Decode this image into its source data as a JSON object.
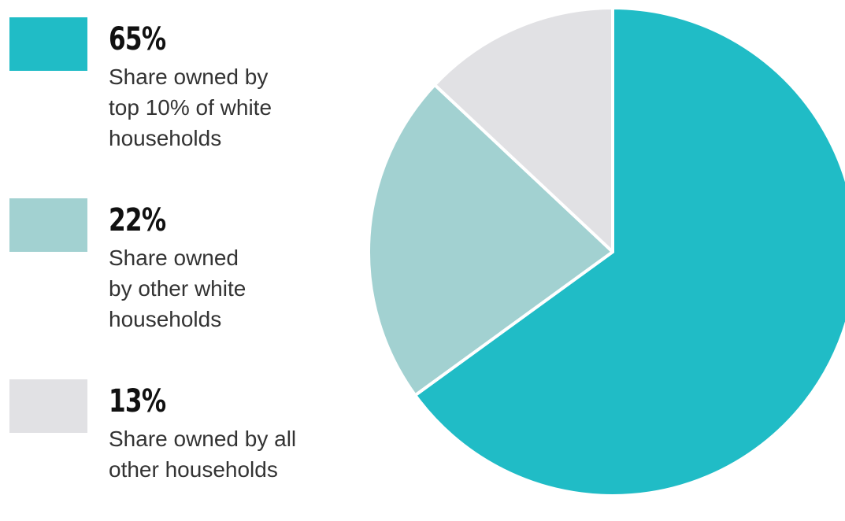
{
  "chart_data": {
    "type": "pie",
    "title": "",
    "slices": [
      {
        "value": 65,
        "label": "65%",
        "description": [
          "Share owned by",
          "top 10% of white",
          "households"
        ],
        "color": "#20bcc6"
      },
      {
        "value": 22,
        "label": "22%",
        "description": [
          "Share owned",
          "by other white",
          "households"
        ],
        "color": "#a2d1d1"
      },
      {
        "value": 13,
        "label": "13%",
        "description": [
          "Share owned by all",
          "other households"
        ],
        "color": "#e1e1e4"
      }
    ],
    "start_angle_deg": 0,
    "direction": "clockwise",
    "legend_position": "left",
    "separator_color": "#ffffff"
  }
}
